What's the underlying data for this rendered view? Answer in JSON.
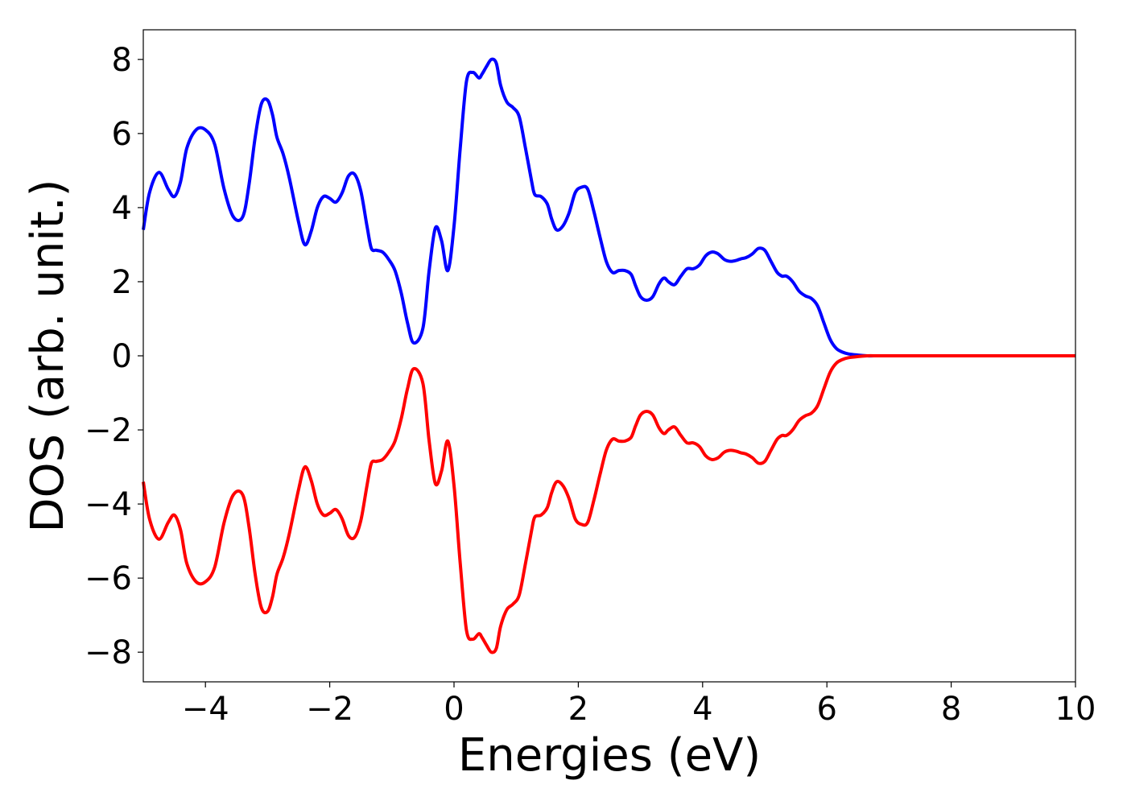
{
  "chart_data": {
    "type": "line",
    "title": "",
    "xlabel": "Energies (eV)",
    "ylabel": "DOS (arb. unit.)",
    "xlim": [
      -5,
      10
    ],
    "ylim": [
      -8.8,
      8.8
    ],
    "xticks": [
      -4,
      -2,
      0,
      2,
      4,
      6,
      8,
      10
    ],
    "xtick_labels": [
      "−4",
      "−2",
      "0",
      "2",
      "4",
      "6",
      "8",
      "10"
    ],
    "yticks": [
      8,
      6,
      4,
      2,
      0,
      -2,
      -4,
      -6,
      -8
    ],
    "ytick_labels": [
      "8",
      "6",
      "4",
      "2",
      "0",
      "−2",
      "−4",
      "−6",
      "−8"
    ],
    "grid": false,
    "legend": "none",
    "x": [
      -5.0,
      -4.9,
      -4.75,
      -4.6,
      -4.5,
      -4.4,
      -4.3,
      -4.15,
      -4.0,
      -3.85,
      -3.7,
      -3.55,
      -3.4,
      -3.3,
      -3.2,
      -3.1,
      -3.0,
      -2.92,
      -2.85,
      -2.75,
      -2.65,
      -2.5,
      -2.4,
      -2.3,
      -2.2,
      -2.1,
      -2.0,
      -1.9,
      -1.8,
      -1.7,
      -1.6,
      -1.5,
      -1.4,
      -1.33,
      -1.25,
      -1.15,
      -1.05,
      -0.95,
      -0.85,
      -0.75,
      -0.65,
      -0.5,
      -0.4,
      -0.3,
      -0.2,
      -0.1,
      0.0,
      0.1,
      0.2,
      0.3,
      0.4,
      0.45,
      0.52,
      0.6,
      0.68,
      0.75,
      0.85,
      0.95,
      1.05,
      1.15,
      1.25,
      1.3,
      1.4,
      1.5,
      1.57,
      1.65,
      1.75,
      1.85,
      1.95,
      2.05,
      2.15,
      2.25,
      2.35,
      2.45,
      2.55,
      2.65,
      2.75,
      2.85,
      2.92,
      3.0,
      3.1,
      3.2,
      3.3,
      3.38,
      3.45,
      3.55,
      3.65,
      3.75,
      3.85,
      3.95,
      4.05,
      4.15,
      4.25,
      4.35,
      4.45,
      4.55,
      4.62,
      4.7,
      4.8,
      4.9,
      5.0,
      5.1,
      5.2,
      5.28,
      5.35,
      5.45,
      5.55,
      5.65,
      5.75,
      5.85,
      5.95,
      6.05,
      6.15,
      6.25,
      6.35,
      6.5,
      6.65,
      6.8,
      6.9,
      7.0,
      7.1,
      7.2,
      7.3,
      7.4,
      7.5,
      7.6,
      7.7,
      7.8,
      7.9,
      8.0,
      8.1,
      8.2,
      8.3,
      8.4,
      8.5,
      8.6,
      8.7,
      8.8,
      9.0,
      9.5,
      10.0
    ],
    "series": [
      {
        "color": "#0000ff",
        "values": [
          3.4,
          4.4,
          4.95,
          4.5,
          4.3,
          4.7,
          5.6,
          6.1,
          6.1,
          5.7,
          4.5,
          3.75,
          3.75,
          4.6,
          5.9,
          6.8,
          6.9,
          6.5,
          5.9,
          5.45,
          4.8,
          3.6,
          3.0,
          3.35,
          4.0,
          4.3,
          4.25,
          4.15,
          4.4,
          4.85,
          4.9,
          4.45,
          3.5,
          2.9,
          2.85,
          2.8,
          2.6,
          2.3,
          1.7,
          0.9,
          0.35,
          0.75,
          2.3,
          3.45,
          3.1,
          2.3,
          3.5,
          5.6,
          7.4,
          7.65,
          7.5,
          7.6,
          7.8,
          8.0,
          7.9,
          7.3,
          6.85,
          6.7,
          6.45,
          5.6,
          4.7,
          4.35,
          4.3,
          4.1,
          3.7,
          3.4,
          3.5,
          3.85,
          4.4,
          4.55,
          4.5,
          3.9,
          3.2,
          2.55,
          2.25,
          2.3,
          2.3,
          2.2,
          1.9,
          1.6,
          1.5,
          1.6,
          1.95,
          2.1,
          2.0,
          1.92,
          2.15,
          2.35,
          2.35,
          2.45,
          2.7,
          2.8,
          2.75,
          2.6,
          2.55,
          2.58,
          2.62,
          2.65,
          2.75,
          2.9,
          2.85,
          2.55,
          2.25,
          2.15,
          2.15,
          2.0,
          1.75,
          1.62,
          1.55,
          1.35,
          0.9,
          0.45,
          0.2,
          0.1,
          0.05,
          0.02,
          0.0,
          0.0,
          0.0,
          0.0,
          0.0,
          0.0,
          0.0,
          0.0,
          0.0,
          0.0,
          0.0,
          0.0,
          0.0,
          0.0,
          0.0,
          0.0,
          0.0,
          0.0,
          0.0,
          0.0,
          0.0,
          0.0,
          0.0,
          0.0,
          0.0
        ]
      },
      {
        "color": "#ff0000",
        "values": [
          -3.4,
          -4.4,
          -4.95,
          -4.5,
          -4.3,
          -4.7,
          -5.6,
          -6.1,
          -6.1,
          -5.7,
          -4.5,
          -3.75,
          -3.75,
          -4.6,
          -5.9,
          -6.8,
          -6.9,
          -6.5,
          -5.9,
          -5.45,
          -4.8,
          -3.6,
          -3.0,
          -3.35,
          -4.0,
          -4.3,
          -4.25,
          -4.15,
          -4.4,
          -4.85,
          -4.9,
          -4.45,
          -3.5,
          -2.9,
          -2.85,
          -2.8,
          -2.6,
          -2.3,
          -1.7,
          -0.9,
          -0.35,
          -0.75,
          -2.3,
          -3.45,
          -3.1,
          -2.3,
          -3.5,
          -5.6,
          -7.4,
          -7.65,
          -7.5,
          -7.6,
          -7.8,
          -8.0,
          -7.9,
          -7.3,
          -6.85,
          -6.7,
          -6.45,
          -5.6,
          -4.7,
          -4.35,
          -4.3,
          -4.1,
          -3.7,
          -3.4,
          -3.5,
          -3.85,
          -4.4,
          -4.55,
          -4.5,
          -3.9,
          -3.2,
          -2.55,
          -2.25,
          -2.3,
          -2.3,
          -2.2,
          -1.9,
          -1.6,
          -1.5,
          -1.6,
          -1.95,
          -2.1,
          -2.0,
          -1.92,
          -2.15,
          -2.35,
          -2.35,
          -2.45,
          -2.7,
          -2.8,
          -2.75,
          -2.6,
          -2.55,
          -2.58,
          -2.62,
          -2.65,
          -2.75,
          -2.9,
          -2.85,
          -2.55,
          -2.25,
          -2.15,
          -2.15,
          -2.0,
          -1.75,
          -1.62,
          -1.55,
          -1.35,
          -0.9,
          -0.45,
          -0.2,
          -0.1,
          -0.05,
          -0.02,
          0.0,
          0.0,
          0.0,
          0.0,
          0.0,
          0.0,
          0.0,
          0.0,
          0.0,
          0.0,
          0.0,
          0.0,
          0.0,
          0.0,
          0.0,
          0.0,
          0.0,
          0.0,
          0.0,
          0.0,
          0.0,
          0.0,
          0.0,
          0.0,
          0.0
        ]
      }
    ]
  }
}
